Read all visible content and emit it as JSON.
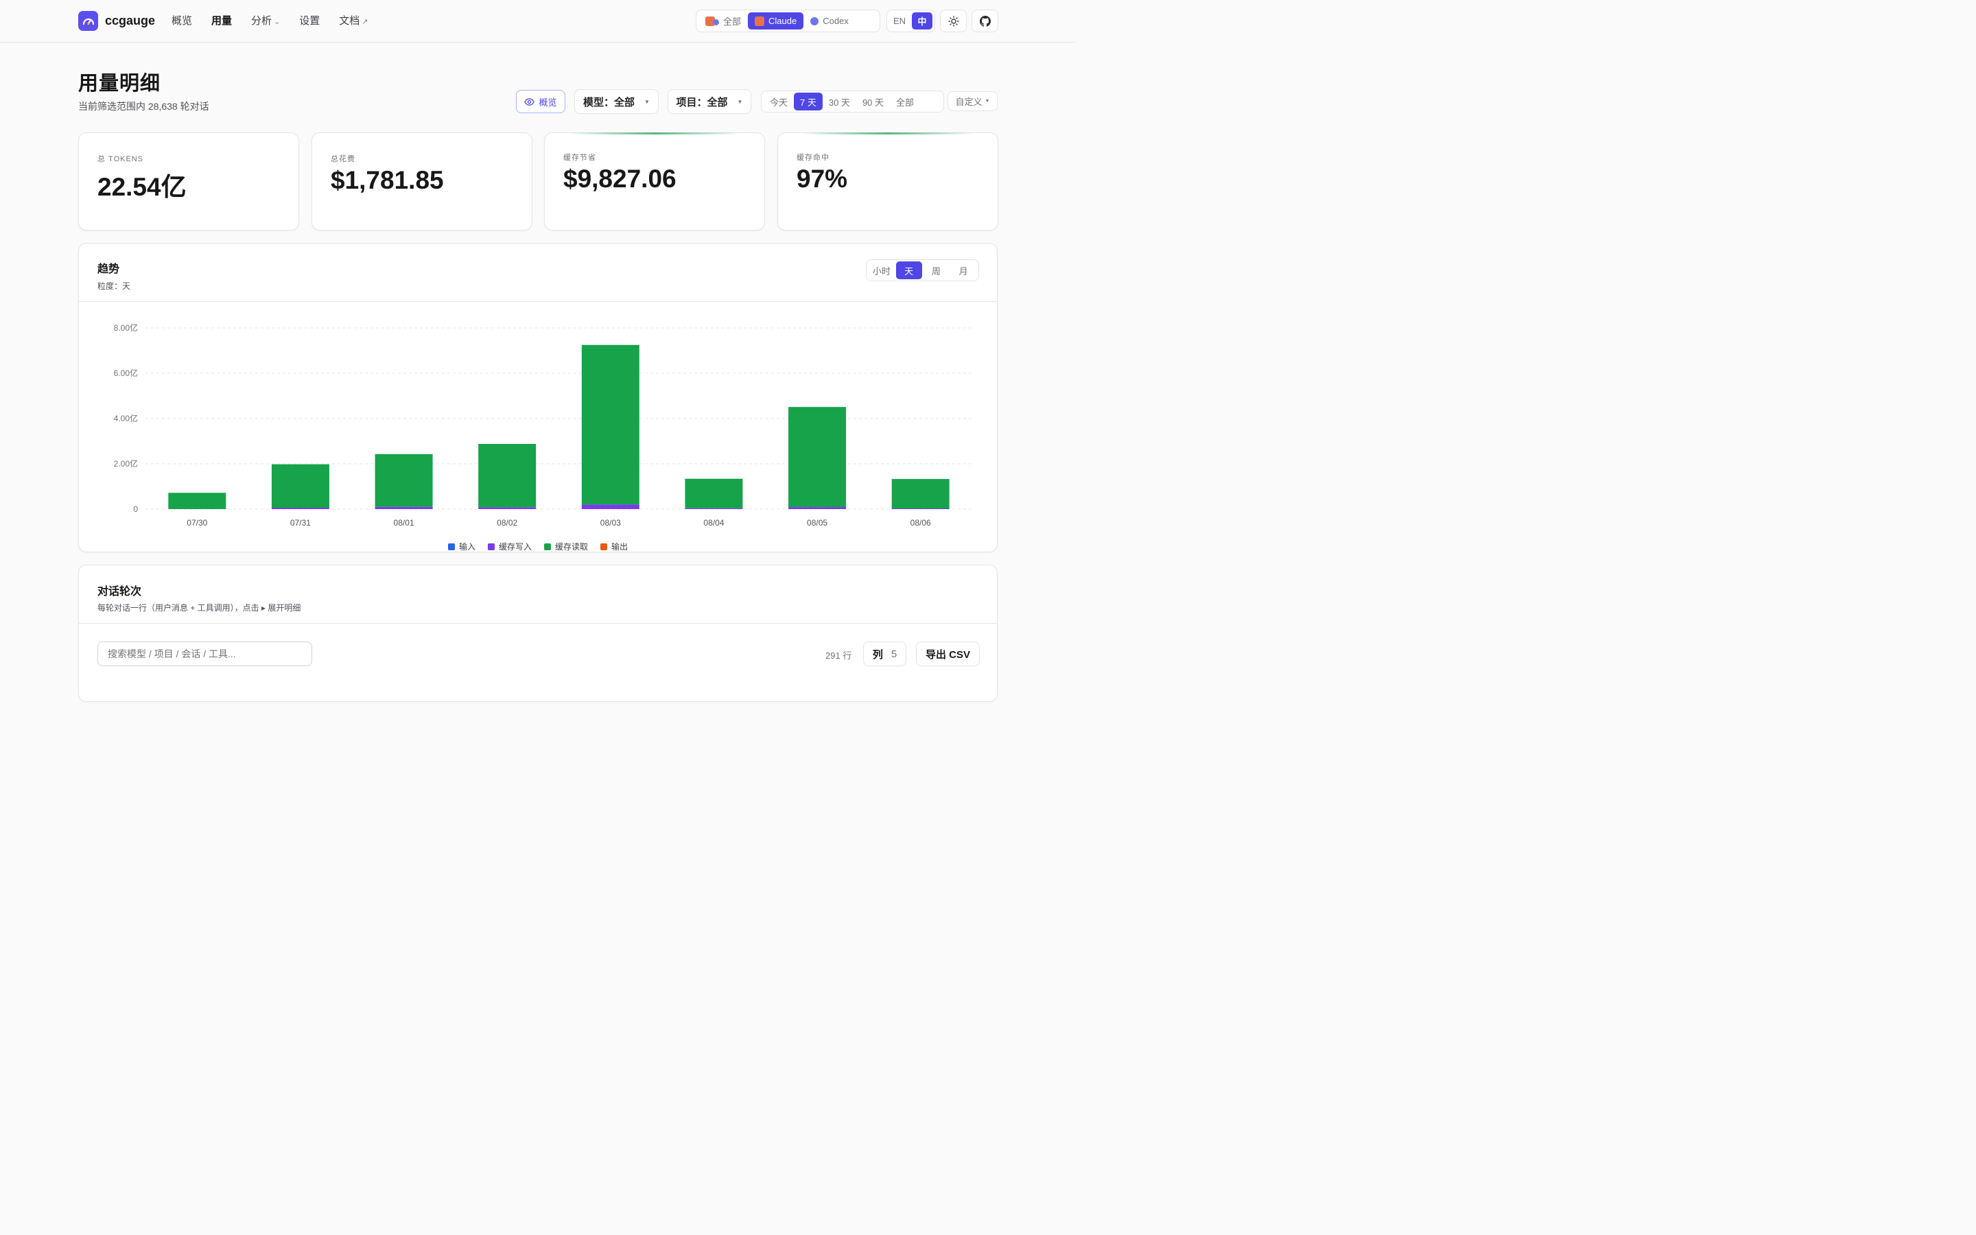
{
  "app": {
    "name": "ccgauge",
    "nav": [
      {
        "label": "概览",
        "suffix": ""
      },
      {
        "label": "用量",
        "suffix": ""
      },
      {
        "label": "分析",
        "suffix": "⌄"
      },
      {
        "label": "设置",
        "suffix": ""
      },
      {
        "label": "文档",
        "suffix": "↗"
      }
    ],
    "active_nav": "用量",
    "providers": [
      "全部",
      "Claude",
      "Codex"
    ],
    "active_provider": "Claude",
    "langs": [
      "EN",
      "中"
    ],
    "active_lang": "中",
    "icons": [
      "sun-icon",
      "github-icon"
    ]
  },
  "page": {
    "title": "用量明细",
    "subtitle": "当前筛选范围内 28,638 轮对话",
    "overview_button": "概览",
    "model_filter": "模型：全部",
    "project_filter": "项目：全部",
    "ranges": [
      "今天",
      "7 天",
      "30 天",
      "90 天",
      "全部"
    ],
    "active_range": "7 天",
    "custom_range": "自定义"
  },
  "stats": [
    {
      "label": "总 TOKENS",
      "value": "22.54亿",
      "highlight": false
    },
    {
      "label": "总花费",
      "value": "$1,781.85",
      "highlight": false
    },
    {
      "label": "缓存节省",
      "value": "$9,827.06",
      "highlight": true
    },
    {
      "label": "缓存命中",
      "value": "97%",
      "highlight": true
    }
  ],
  "trend": {
    "title": "趋势",
    "granularity_label": "粒度：天",
    "granularities": [
      "小时",
      "天",
      "周",
      "月"
    ],
    "active_granularity": "天"
  },
  "chart_data": {
    "type": "bar",
    "stacked": true,
    "categories": [
      "07/30",
      "07/31",
      "08/01",
      "08/02",
      "08/03",
      "08/04",
      "08/05",
      "08/06"
    ],
    "y_ticks": [
      "0",
      "2.00亿",
      "4.00亿",
      "6.00亿",
      "8.00亿"
    ],
    "ylim": [
      0,
      8.0
    ],
    "unit": "亿",
    "series": [
      {
        "name": "输入",
        "color": "#2563eb",
        "values": [
          0.0,
          0.0,
          0.0,
          0.0,
          0.0,
          0.0,
          0.0,
          0.0
        ]
      },
      {
        "name": "缓存写入",
        "color": "#7c3aed",
        "values": [
          0.0,
          0.06,
          0.1,
          0.08,
          0.2,
          0.04,
          0.09,
          0.03
        ]
      },
      {
        "name": "缓存读取",
        "color": "#16a34a",
        "values": [
          0.72,
          1.92,
          2.33,
          2.8,
          7.05,
          1.3,
          4.42,
          1.3
        ]
      },
      {
        "name": "输出",
        "color": "#ea580c",
        "values": [
          0.0,
          0.0,
          0.0,
          0.0,
          0.0,
          0.0,
          0.0,
          0.0
        ]
      }
    ],
    "grid": true,
    "legend_position": "bottom"
  },
  "turns": {
    "title": "对话轮次",
    "subtitle": "每轮对话一行（用户消息 + 工具调用），点击 ▸ 展开明细",
    "search_placeholder": "搜索模型 / 项目 / 会话 / 工具...",
    "row_count": "291 行",
    "columns_label": "列",
    "columns_count": "5",
    "export_label": "导出 CSV"
  }
}
